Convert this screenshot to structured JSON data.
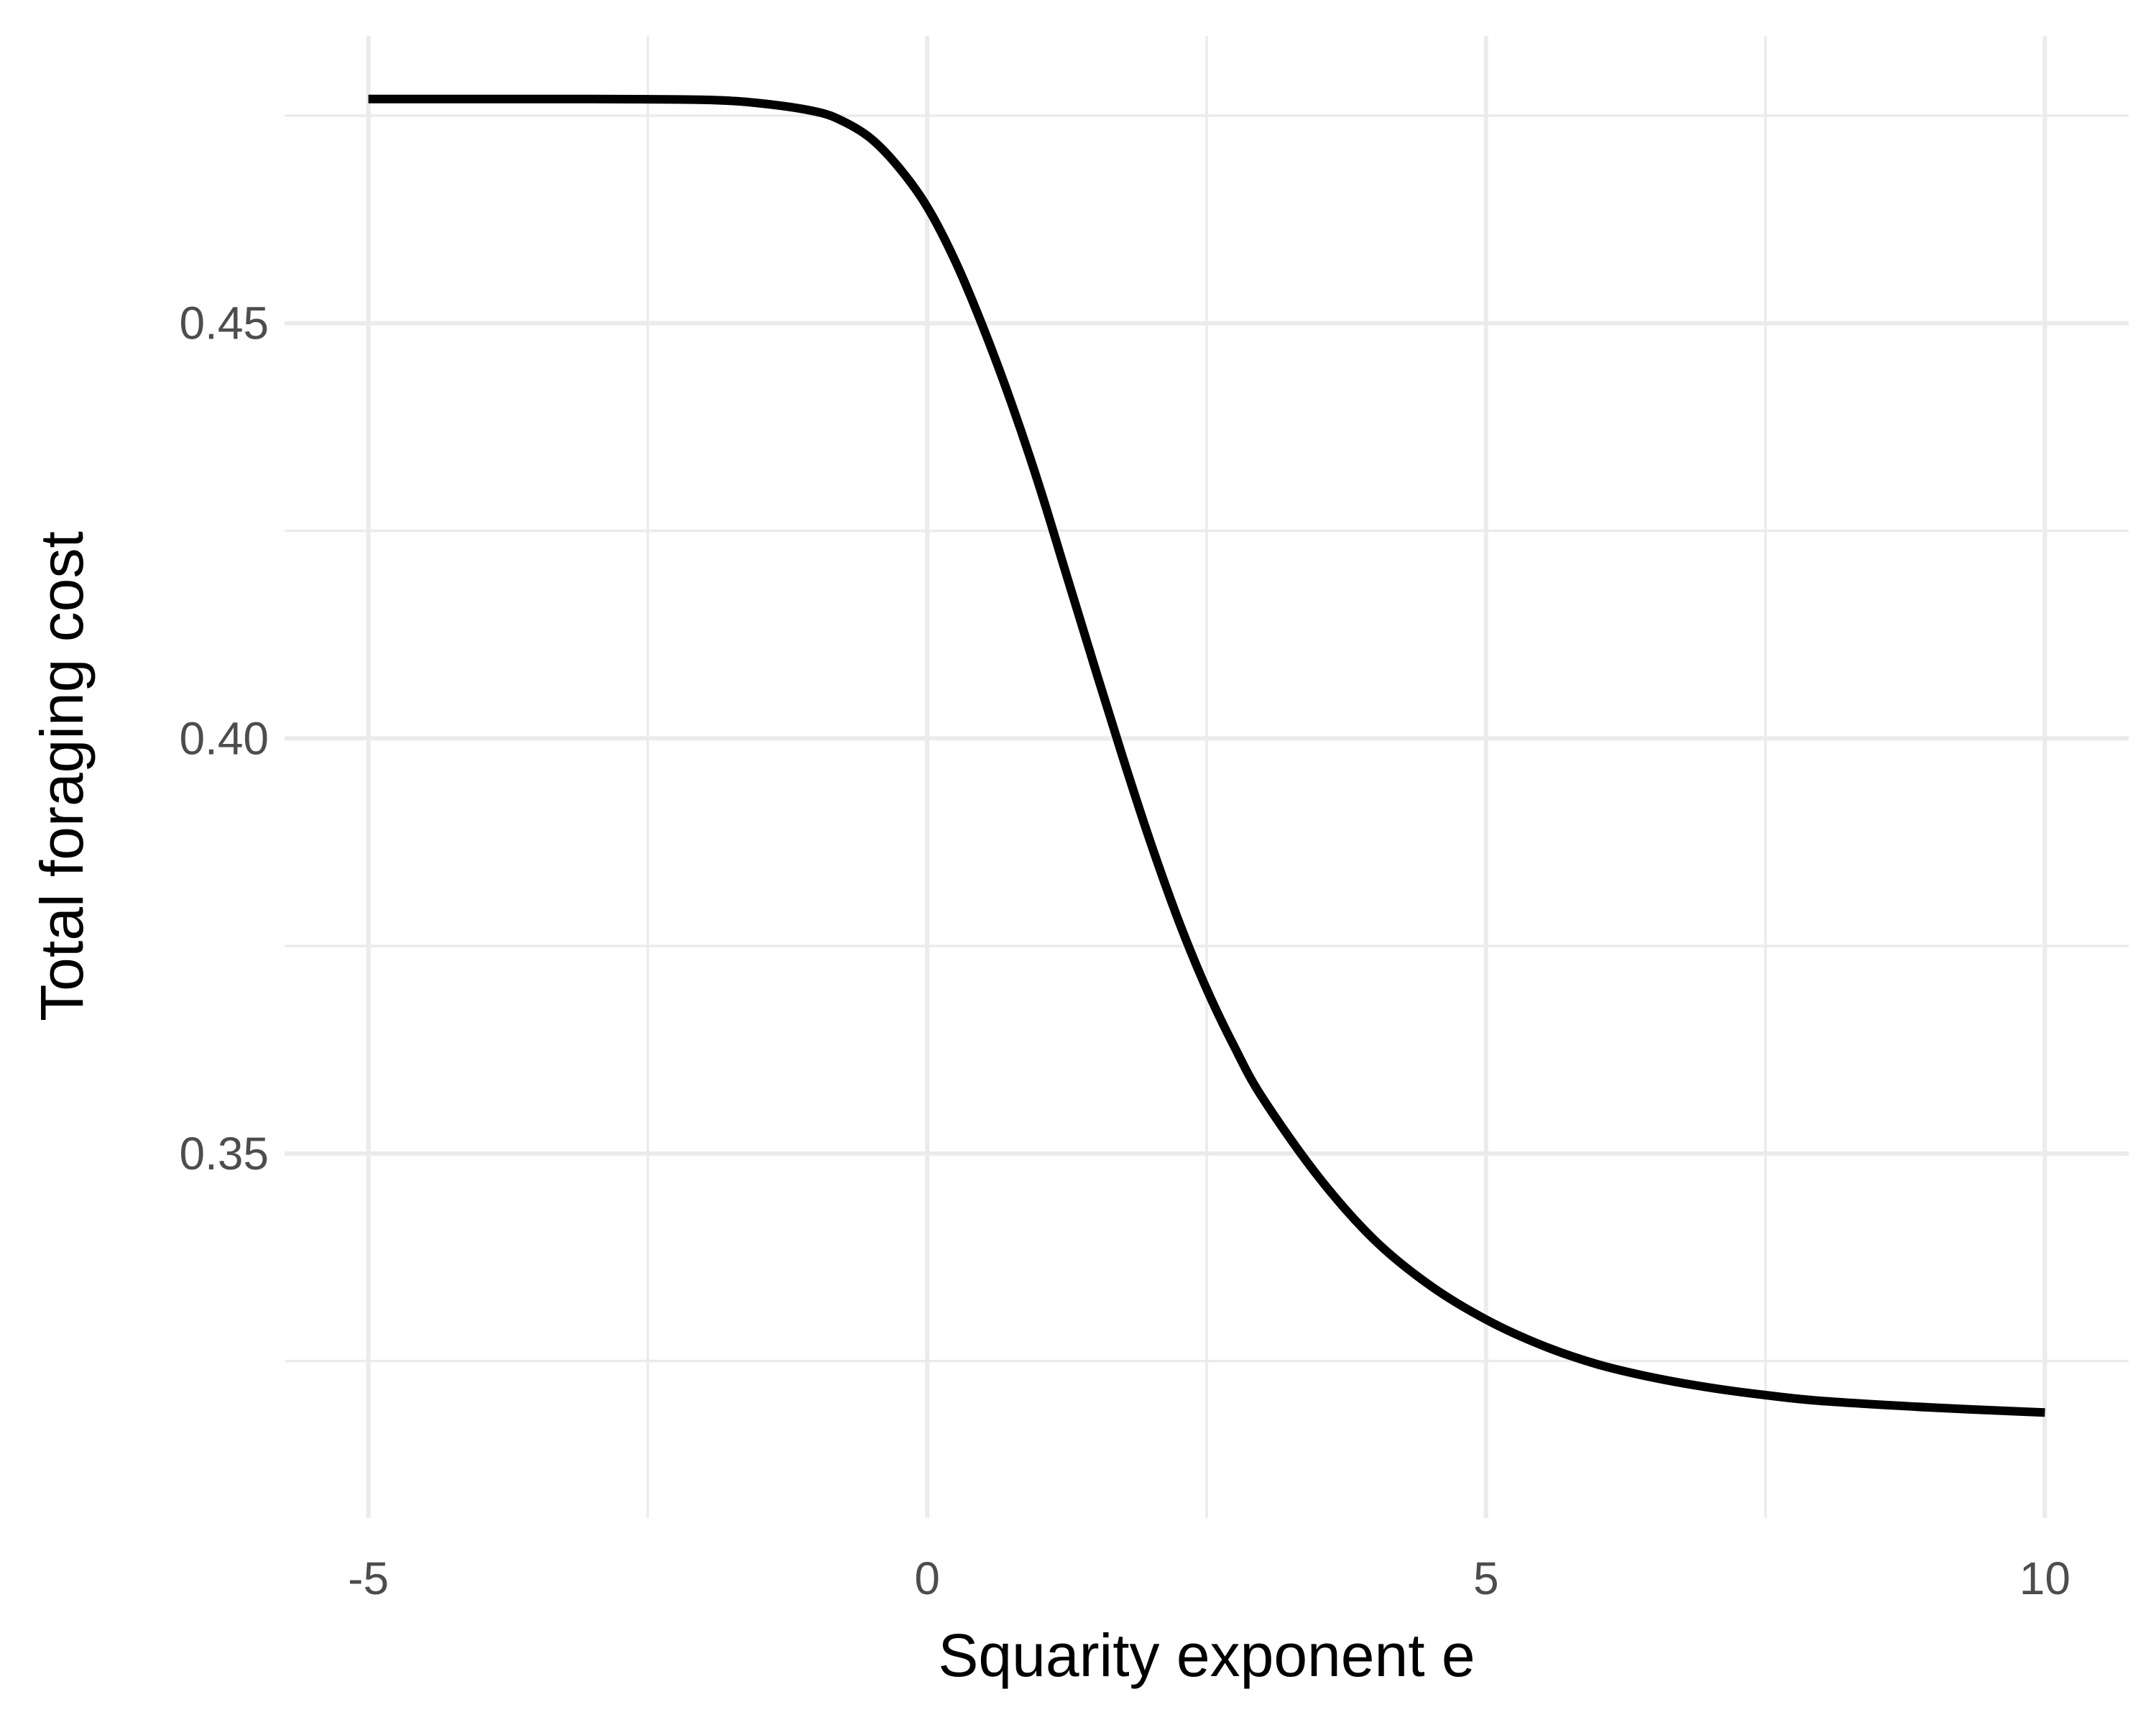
{
  "chart_data": {
    "type": "line",
    "title": "",
    "xlabel": "Squarity exponent e",
    "ylabel": "Total foraging cost",
    "xlim": [
      -5.75,
      10.75
    ],
    "ylim": [
      0.3061,
      0.4846
    ],
    "grid": true,
    "legend": "none",
    "x_major_ticks": [
      -5,
      0,
      5,
      10
    ],
    "x_tick_labels": [
      "-5",
      "0",
      "5",
      "10"
    ],
    "x_minor_ticks": [
      -2.5,
      2.5,
      7.5
    ],
    "y_major_ticks": [
      0.35,
      0.4,
      0.45
    ],
    "y_tick_labels": [
      "0.35",
      "0.40",
      "0.45"
    ],
    "y_minor_ticks": [
      0.325,
      0.375,
      0.425,
      0.475
    ],
    "series": [
      {
        "color": "#000000",
        "x": [
          -5,
          -4,
          -3,
          -2,
          -1.5,
          -1,
          -0.75,
          -0.5,
          -0.25,
          0,
          0.25,
          0.5,
          0.75,
          1,
          1.25,
          1.5,
          1.75,
          2,
          2.25,
          2.5,
          2.75,
          3,
          3.5,
          4,
          4.5,
          5,
          5.5,
          6,
          6.5,
          7,
          7.5,
          8,
          9,
          10
        ],
        "y": [
          0.477,
          0.477,
          0.477,
          0.4769,
          0.4765,
          0.4755,
          0.4743,
          0.4722,
          0.4687,
          0.464,
          0.4575,
          0.4495,
          0.4405,
          0.4305,
          0.4195,
          0.4085,
          0.3977,
          0.3874,
          0.378,
          0.3698,
          0.3628,
          0.3567,
          0.3472,
          0.3396,
          0.3341,
          0.33,
          0.3269,
          0.3246,
          0.323,
          0.3218,
          0.3209,
          0.3202,
          0.3194,
          0.3188
        ]
      }
    ]
  }
}
